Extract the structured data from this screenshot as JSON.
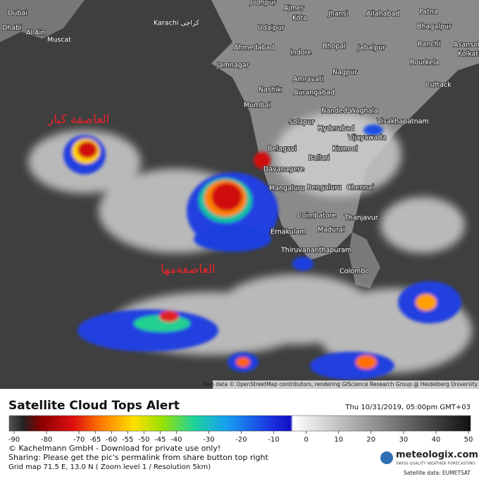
{
  "map": {
    "cities": [
      "Jodhpur",
      "Ajmer",
      "Kota",
      "Jhansi",
      "Allahabad",
      "Patna",
      "Dubai",
      "Dhabi",
      "Al Ain",
      "Muscat",
      "Karachi کراچی",
      "Udaipur",
      "Bhagalpur",
      "Ahmedabad",
      "Bhopal",
      "Jabalpur",
      "Ranchi",
      "Asansol",
      "Kolkata",
      "Jamnagar",
      "Indore",
      "Nagpur",
      "Rourkela",
      "Amravati",
      "Nashik",
      "Aurangabad",
      "Cuttack",
      "Mumbai",
      "Nanded-Waghala",
      "Solapur",
      "Hyderabad",
      "Visakhapatnam",
      "Vijayawada",
      "Belagavi",
      "Ballari",
      "Kurnool",
      "Davanagere",
      "Mangaluru",
      "Bengaluru",
      "Chennai",
      "Coimbatore",
      "Thanjavur",
      "Madurai",
      "Ernakulam",
      "Thiruvananthapuram",
      "Colombo"
    ],
    "annotations": [
      "العاصفة كيار",
      "العاصفةمها"
    ],
    "attribution": "Map data © OpenStreetMap contributors, rendering GIScience Research Group @ Heidelberg University"
  },
  "legend": {
    "title": "Satellite Cloud Tops Alert",
    "timestamp": "Thu 10/31/2019, 05:00pm GMT+03",
    "range": [
      -90,
      50
    ],
    "ticks": [
      -90,
      -80,
      -70,
      -65,
      -60,
      -55,
      -50,
      -45,
      -40,
      -30,
      -20,
      -10,
      0,
      10,
      20,
      30,
      40,
      50
    ]
  },
  "footer": {
    "lines": [
      "© Kachelmann GmbH - Download for private use only!",
      "Sharing: Please get the pic's permalink from share button top right",
      "Grid map 71.5 E, 13.0 N ( Zoom level 1 / Resolution 5km)"
    ],
    "logo": "meteologix.com",
    "tagline": "SWISS QUALITY WEATHER FORECASTING",
    "source": "Satellite data: EUMETSAT"
  }
}
